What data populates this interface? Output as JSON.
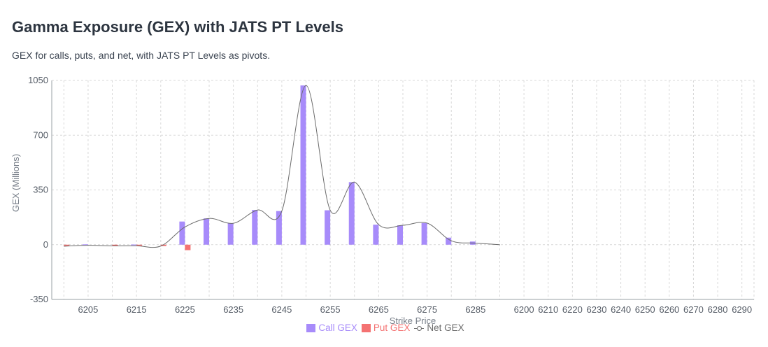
{
  "header": {
    "title": "Gamma Exposure (GEX) with JATS PT Levels",
    "subtitle": "GEX for calls, puts, and net, with JATS PT Levels as pivots."
  },
  "colors": {
    "call": "#a78bfa",
    "put": "#f47272",
    "net": "#6b6b6b",
    "grid": "#d9d9d9",
    "axis": "#9aa0a6"
  },
  "chart_data": {
    "type": "bar",
    "title": "Gamma Exposure (GEX) with JATS PT Levels",
    "xlabel": "Strike Price",
    "ylabel": "GEX (Millions)",
    "ylim": [
      -350,
      1050
    ],
    "y_ticks": [
      -350,
      0,
      350,
      700,
      1050
    ],
    "grid": true,
    "legend_position": "bottom-center",
    "categories": [
      "6200",
      "6205",
      "6210",
      "6215",
      "6220",
      "6225",
      "6230",
      "6235",
      "6240",
      "6245",
      "6250",
      "6255",
      "6260",
      "6265",
      "6270",
      "6275",
      "6280",
      "6285",
      "6290",
      "6200",
      "6210",
      "6220",
      "6230",
      "6240",
      "6250",
      "6260",
      "6270",
      "6280",
      "6290"
    ],
    "x_tick_labels": [
      "",
      "6205",
      "",
      "6215",
      "",
      "6225",
      "",
      "6235",
      "",
      "6245",
      "",
      "6255",
      "",
      "6265",
      "",
      "6275",
      "",
      "6285",
      "",
      "6200",
      "6210",
      "6220",
      "6230",
      "6240",
      "6250",
      "6260",
      "6270",
      "6280",
      "6290"
    ],
    "series": [
      {
        "name": "Call GEX",
        "values": [
          0,
          2,
          0,
          1,
          0,
          148,
          168,
          137,
          222,
          215,
          1018,
          220,
          400,
          128,
          124,
          138,
          45,
          20,
          0,
          0,
          0,
          0,
          0,
          0,
          0,
          0,
          0,
          0,
          0
        ]
      },
      {
        "name": "Put GEX",
        "values": [
          -10,
          0,
          -8,
          -7,
          -9,
          -35,
          0,
          0,
          0,
          0,
          0,
          0,
          0,
          0,
          0,
          0,
          0,
          0,
          0,
          0,
          0,
          0,
          0,
          0,
          0,
          0,
          0,
          0,
          0
        ]
      },
      {
        "name": "Net GEX",
        "values": [
          -10,
          -4,
          -8,
          -7,
          -9,
          113,
          168,
          137,
          222,
          215,
          1018,
          220,
          400,
          128,
          124,
          138,
          25,
          10,
          0,
          null,
          null,
          null,
          null,
          null,
          null,
          null,
          null,
          null,
          null
        ]
      }
    ]
  },
  "legend": [
    {
      "label": "Call GEX"
    },
    {
      "label": "Put GEX"
    },
    {
      "label": "Net GEX"
    }
  ]
}
